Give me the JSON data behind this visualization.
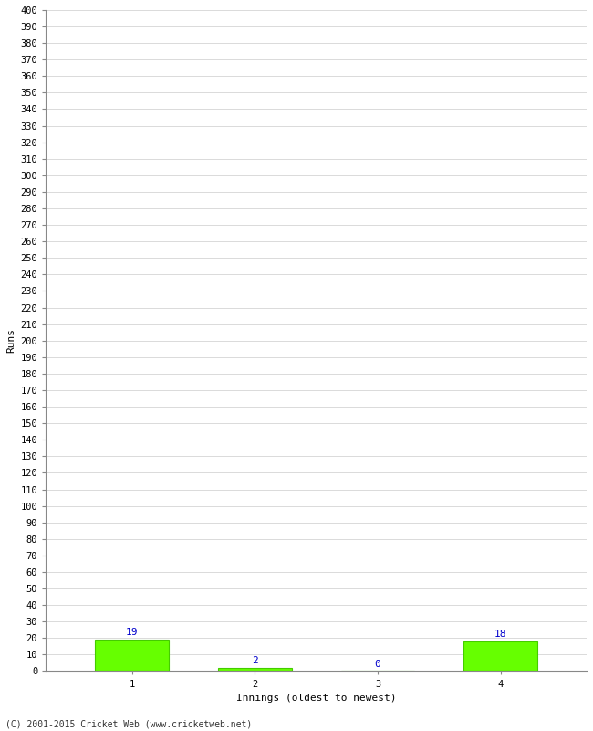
{
  "categories": [
    1,
    2,
    3,
    4
  ],
  "values": [
    19,
    2,
    0,
    18
  ],
  "bar_color": "#66ff00",
  "bar_edge_color": "#44cc00",
  "xlabel": "Innings (oldest to newest)",
  "ylabel": "Runs",
  "ylim": [
    0,
    400
  ],
  "ytick_step": 10,
  "background_color": "#ffffff",
  "grid_color": "#cccccc",
  "label_color": "#0000cc",
  "footer_text": "(C) 2001-2015 Cricket Web (www.cricketweb.net)",
  "tick_label_fontsize": 7.5,
  "axis_label_fontsize": 8,
  "annotation_fontsize": 8,
  "xlabel_fontsize": 8
}
